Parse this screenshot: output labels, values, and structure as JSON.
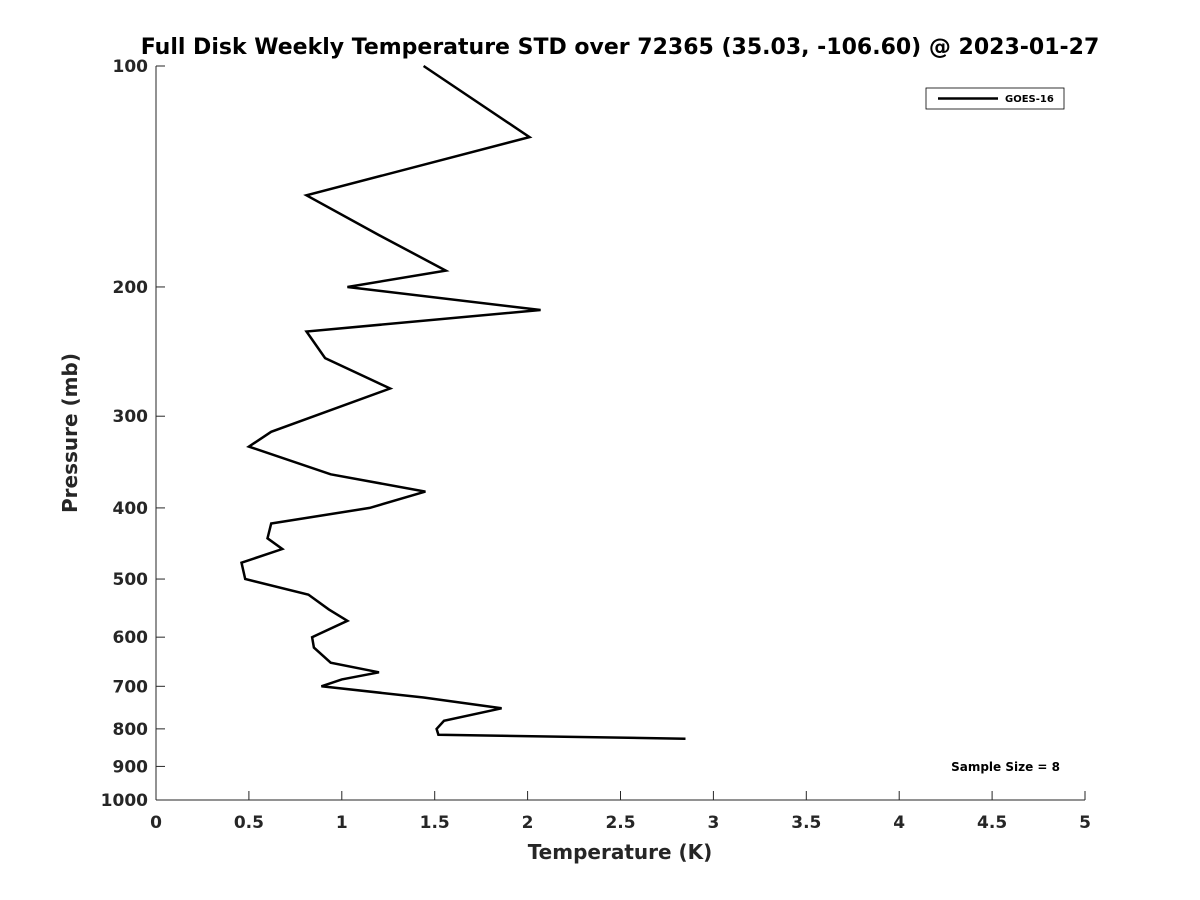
{
  "chart_data": {
    "type": "line",
    "title": "Full Disk Weekly Temperature STD over 72365 (35.03, -106.60) @ 2023-01-27",
    "xlabel": "Temperature (K)",
    "ylabel": "Pressure (mb)",
    "xlim": [
      0,
      5
    ],
    "ylim": [
      100,
      1000
    ],
    "y_scale": "log",
    "y_reversed": true,
    "grid": false,
    "legend_position": "top-right",
    "x_ticks": [
      "0",
      "0.5",
      "1",
      "1.5",
      "2",
      "2.5",
      "3",
      "3.5",
      "4",
      "4.5",
      "5"
    ],
    "y_ticks": [
      "100",
      "200",
      "300",
      "400",
      "500",
      "600",
      "700",
      "800",
      "900",
      "1000"
    ],
    "series": [
      {
        "name": "GOES-16",
        "color": "#000000",
        "points": [
          {
            "t": 1.44,
            "p": 100
          },
          {
            "t": 2.01,
            "p": 125
          },
          {
            "t": 0.81,
            "p": 150
          },
          {
            "t": 1.2,
            "p": 170
          },
          {
            "t": 1.56,
            "p": 190
          },
          {
            "t": 1.03,
            "p": 200
          },
          {
            "t": 2.07,
            "p": 215
          },
          {
            "t": 0.81,
            "p": 230
          },
          {
            "t": 0.91,
            "p": 250
          },
          {
            "t": 1.26,
            "p": 275
          },
          {
            "t": 0.62,
            "p": 315
          },
          {
            "t": 0.5,
            "p": 330
          },
          {
            "t": 0.94,
            "p": 360
          },
          {
            "t": 1.45,
            "p": 380
          },
          {
            "t": 1.15,
            "p": 400
          },
          {
            "t": 0.62,
            "p": 420
          },
          {
            "t": 0.6,
            "p": 440
          },
          {
            "t": 0.68,
            "p": 455
          },
          {
            "t": 0.46,
            "p": 475
          },
          {
            "t": 0.48,
            "p": 500
          },
          {
            "t": 0.82,
            "p": 525
          },
          {
            "t": 0.93,
            "p": 550
          },
          {
            "t": 1.03,
            "p": 570
          },
          {
            "t": 0.84,
            "p": 600
          },
          {
            "t": 0.85,
            "p": 620
          },
          {
            "t": 0.94,
            "p": 650
          },
          {
            "t": 1.2,
            "p": 670
          },
          {
            "t": 1.0,
            "p": 685
          },
          {
            "t": 0.89,
            "p": 700
          },
          {
            "t": 1.44,
            "p": 725
          },
          {
            "t": 1.86,
            "p": 750
          },
          {
            "t": 1.55,
            "p": 780
          },
          {
            "t": 1.51,
            "p": 800
          },
          {
            "t": 1.52,
            "p": 815
          },
          {
            "t": 2.85,
            "p": 825
          }
        ]
      }
    ],
    "annotation": "Sample Size = 8"
  }
}
